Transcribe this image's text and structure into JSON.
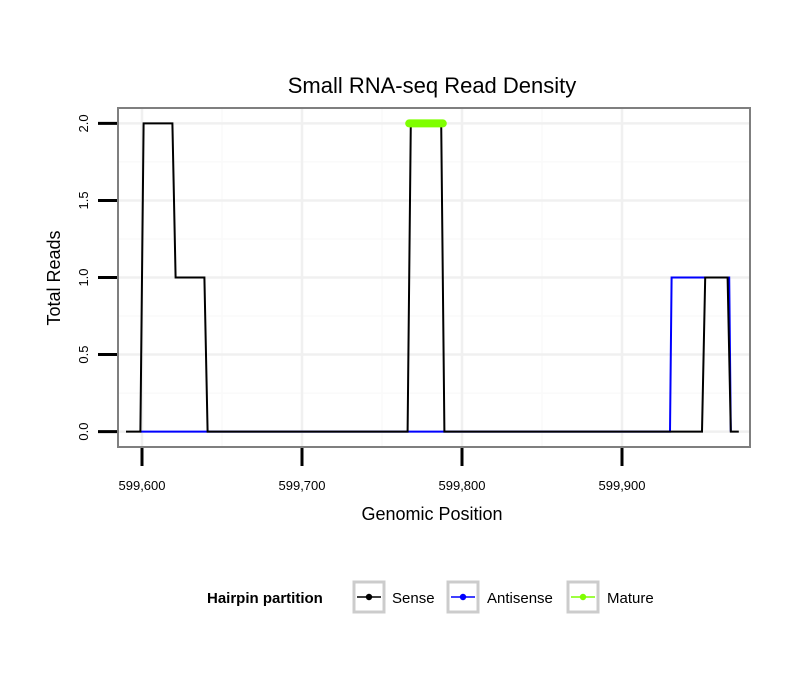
{
  "chart_data": {
    "type": "line",
    "title": "Small RNA-seq Read Density",
    "xlabel": "Genomic Position",
    "ylabel": "Total Reads",
    "xlim": [
      599585,
      599980
    ],
    "ylim": [
      -0.1,
      2.1
    ],
    "xticks": [
      599600,
      599700,
      599800,
      599900
    ],
    "xtick_labels": [
      "599,600",
      "599,700",
      "599,800",
      "599,900"
    ],
    "yticks": [
      0,
      0.5,
      1,
      1.5,
      2
    ],
    "ytick_labels": [
      "0.0",
      "0.5",
      "1.0",
      "1.5",
      "2.0"
    ],
    "grid": true,
    "legend_position": "bottom",
    "legend_title": "Hairpin partition",
    "series": [
      {
        "name": "Sense",
        "color": "#000000",
        "x": [
          599590,
          599599,
          599601,
          599619,
          599621,
          599639,
          599641,
          599766,
          599768,
          599787,
          599789,
          599950,
          599952,
          599966,
          599968,
          599973
        ],
        "y": [
          0,
          0,
          2,
          2,
          1,
          1,
          0,
          0,
          2,
          2,
          0,
          0,
          1,
          1,
          0,
          0
        ]
      },
      {
        "name": "Antisense",
        "color": "#0000ff",
        "x": [
          599599,
          599930,
          599931,
          599967,
          599968
        ],
        "y": [
          0,
          0,
          1,
          1,
          0
        ]
      },
      {
        "name": "Mature",
        "color": "#7fff00",
        "x": [
          599767,
          599788
        ],
        "y": [
          2,
          2
        ]
      }
    ]
  }
}
